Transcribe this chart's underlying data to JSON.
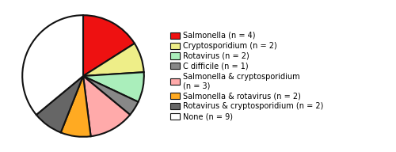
{
  "slices": [
    4,
    2,
    2,
    1,
    3,
    2,
    2,
    9
  ],
  "colors": [
    "#ee1111",
    "#eeee88",
    "#aaeebb",
    "#888888",
    "#ffaaaa",
    "#ffaa22",
    "#666666",
    "#ffffff"
  ],
  "labels": [
    "Salmonella (n = 4)",
    "Cryptosporidium (n = 2)",
    "Rotavirus (n = 2)",
    "C difficile (n = 1)",
    "Salmonella & cryptosporidium\n(n = 3)",
    "Salmonella & rotavirus (n = 2)",
    "Rotavirus & cryptosporidium (n = 2)",
    "None (n = 9)"
  ],
  "edge_color": "#111111",
  "edge_width": 1.5,
  "legend_fontsize": 7.0,
  "startangle": 90,
  "figsize": [
    5.0,
    1.92
  ],
  "dpi": 100
}
